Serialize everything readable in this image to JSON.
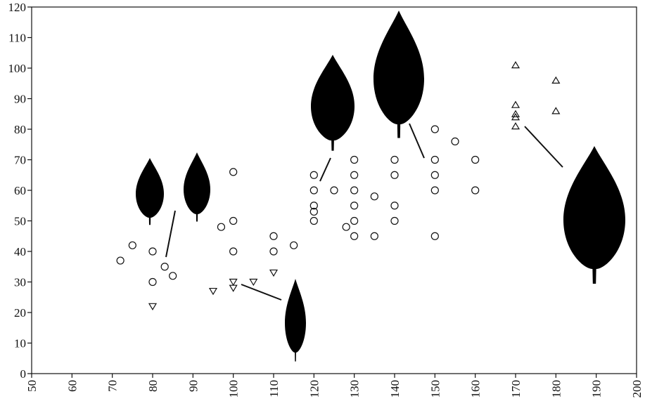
{
  "chart_data": {
    "type": "scatter",
    "xlim": [
      50,
      200
    ],
    "xticks": [
      50,
      60,
      70,
      80,
      90,
      100,
      110,
      120,
      130,
      140,
      150,
      160,
      170,
      180,
      190,
      200
    ],
    "ylim": [
      0,
      120
    ],
    "yticks": [
      0,
      10,
      20,
      30,
      40,
      50,
      60,
      70,
      80,
      90,
      100,
      110,
      120
    ],
    "series": [
      {
        "marker": "circle",
        "color": "#111111",
        "x": [
          72,
          75,
          80,
          80,
          83,
          85,
          97,
          100,
          100,
          100,
          110,
          110,
          115,
          120,
          120,
          120,
          120,
          120,
          125,
          128,
          130,
          130,
          130,
          130,
          130,
          130,
          135,
          135,
          140,
          140,
          140,
          140,
          150,
          150,
          150,
          150,
          150,
          155,
          160,
          160
        ],
        "values": [
          37,
          42,
          40,
          30,
          35,
          32,
          48,
          66,
          50,
          40,
          45,
          40,
          42,
          65,
          60,
          55,
          53,
          50,
          60,
          48,
          70,
          65,
          60,
          55,
          50,
          45,
          58,
          45,
          70,
          65,
          55,
          50,
          80,
          70,
          65,
          60,
          45,
          76,
          70,
          60
        ]
      },
      {
        "marker": "triangle-down",
        "color": "#111111",
        "x": [
          80,
          95,
          100,
          100,
          105,
          110
        ],
        "values": [
          22,
          27,
          30,
          28,
          30,
          33
        ]
      },
      {
        "marker": "triangle-up",
        "color": "#111111",
        "x": [
          170,
          170,
          170,
          170,
          170,
          180,
          180
        ],
        "values": [
          101,
          88,
          85,
          84,
          81,
          96,
          86
        ]
      }
    ]
  }
}
